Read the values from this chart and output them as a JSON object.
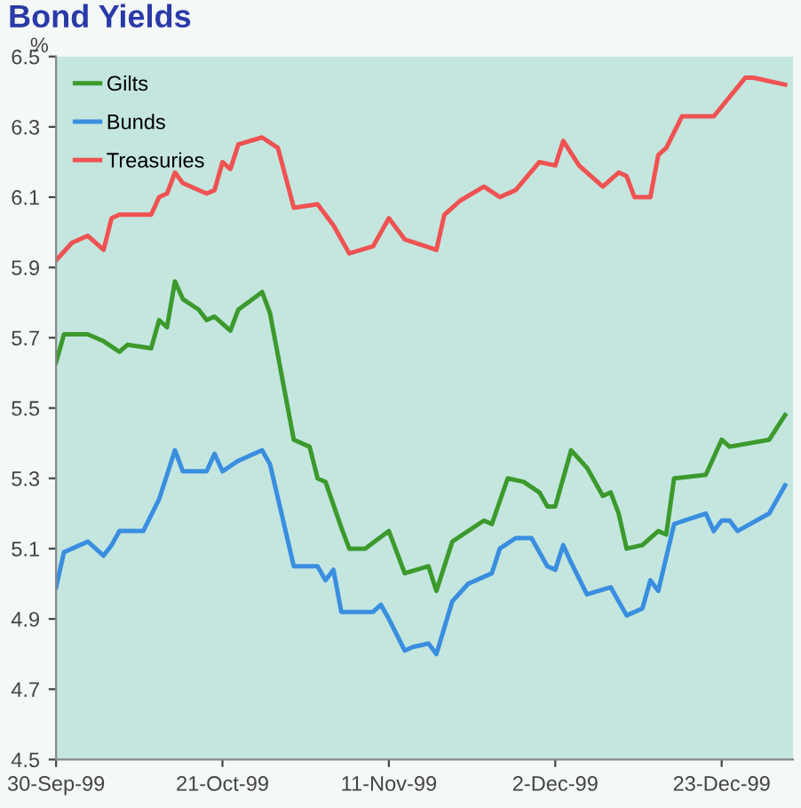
{
  "chart_data": {
    "type": "line",
    "title": "Bond Yields",
    "ylabel": "%",
    "xlim": [
      "1999-09-30",
      "2000-01-01"
    ],
    "ylim": [
      4.5,
      6.5
    ],
    "yticks": [
      4.5,
      4.7,
      4.9,
      5.1,
      5.3,
      5.5,
      5.7,
      5.9,
      6.1,
      6.3,
      6.5
    ],
    "xticks": [
      {
        "value": "1999-09-30",
        "label": "30-Sep-99"
      },
      {
        "value": "1999-10-21",
        "label": "21-Oct-99"
      },
      {
        "value": "1999-11-11",
        "label": "11-Nov-99"
      },
      {
        "value": "1999-12-02",
        "label": "2-Dec-99"
      },
      {
        "value": "1999-12-23",
        "label": "23-Dec-99"
      }
    ],
    "grid": false,
    "legend": "top left",
    "line_style": "solid",
    "marker": "none",
    "series": [
      {
        "name": "Gilts",
        "color": "#3c9a2c",
        "x": [
          "1999-09-30",
          "1999-10-01",
          "1999-10-04",
          "1999-10-06",
          "1999-10-08",
          "1999-10-09",
          "1999-10-12",
          "1999-10-13",
          "1999-10-14",
          "1999-10-15",
          "1999-10-16",
          "1999-10-18",
          "1999-10-19",
          "1999-10-20",
          "1999-10-22",
          "1999-10-23",
          "1999-10-26",
          "1999-10-27",
          "1999-10-30",
          "1999-11-01",
          "1999-11-02",
          "1999-11-03",
          "1999-11-05",
          "1999-11-06",
          "1999-11-08",
          "1999-11-11",
          "1999-11-13",
          "1999-11-16",
          "1999-11-17",
          "1999-11-19",
          "1999-11-23",
          "1999-11-24",
          "1999-11-26",
          "1999-11-28",
          "1999-11-30",
          "1999-12-01",
          "1999-12-02",
          "1999-12-04",
          "1999-12-06",
          "1999-12-08",
          "1999-12-09",
          "1999-12-10",
          "1999-12-11",
          "1999-12-13",
          "1999-12-15",
          "1999-12-16",
          "1999-12-17",
          "1999-12-21",
          "1999-12-23",
          "1999-12-24",
          "1999-12-29",
          "1999-12-31"
        ],
        "values": [
          5.63,
          5.71,
          5.71,
          5.69,
          5.66,
          5.68,
          5.67,
          5.75,
          5.73,
          5.86,
          5.81,
          5.78,
          5.75,
          5.76,
          5.72,
          5.78,
          5.83,
          5.77,
          5.41,
          5.39,
          5.3,
          5.29,
          5.16,
          5.1,
          5.1,
          5.15,
          5.03,
          5.05,
          4.98,
          5.12,
          5.18,
          5.17,
          5.3,
          5.29,
          5.26,
          5.22,
          5.22,
          5.38,
          5.33,
          5.25,
          5.26,
          5.2,
          5.1,
          5.11,
          5.15,
          5.14,
          5.3,
          5.31,
          5.41,
          5.39,
          5.41,
          5.48
        ]
      },
      {
        "name": "Bunds",
        "color": "#3a8ee0",
        "x": [
          "1999-09-30",
          "1999-10-01",
          "1999-10-04",
          "1999-10-06",
          "1999-10-07",
          "1999-10-08",
          "1999-10-11",
          "1999-10-13",
          "1999-10-15",
          "1999-10-16",
          "1999-10-19",
          "1999-10-20",
          "1999-10-21",
          "1999-10-23",
          "1999-10-26",
          "1999-10-27",
          "1999-10-30",
          "1999-11-02",
          "1999-11-03",
          "1999-11-04",
          "1999-11-05",
          "1999-11-09",
          "1999-11-10",
          "1999-11-11",
          "1999-11-13",
          "1999-11-14",
          "1999-11-16",
          "1999-11-17",
          "1999-11-19",
          "1999-11-21",
          "1999-11-24",
          "1999-11-25",
          "1999-11-27",
          "1999-11-29",
          "1999-12-01",
          "1999-12-02",
          "1999-12-03",
          "1999-12-04",
          "1999-12-06",
          "1999-12-09",
          "1999-12-11",
          "1999-12-13",
          "1999-12-14",
          "1999-12-15",
          "1999-12-17",
          "1999-12-21",
          "1999-12-22",
          "1999-12-23",
          "1999-12-24",
          "1999-12-25",
          "1999-12-29",
          "1999-12-31"
        ],
        "values": [
          4.99,
          5.09,
          5.12,
          5.08,
          5.11,
          5.15,
          5.15,
          5.24,
          5.38,
          5.32,
          5.32,
          5.37,
          5.32,
          5.35,
          5.38,
          5.34,
          5.05,
          5.05,
          5.01,
          5.04,
          4.92,
          4.92,
          4.94,
          4.9,
          4.81,
          4.82,
          4.83,
          4.8,
          4.95,
          5.0,
          5.03,
          5.1,
          5.13,
          5.13,
          5.05,
          5.04,
          5.11,
          5.06,
          4.97,
          4.99,
          4.91,
          4.93,
          5.01,
          4.98,
          5.17,
          5.2,
          5.15,
          5.18,
          5.18,
          5.15,
          5.2,
          5.28
        ]
      },
      {
        "name": "Treasuries",
        "color": "#f05252",
        "x": [
          "1999-09-30",
          "1999-10-02",
          "1999-10-04",
          "1999-10-06",
          "1999-10-07",
          "1999-10-08",
          "1999-10-12",
          "1999-10-13",
          "1999-10-14",
          "1999-10-15",
          "1999-10-16",
          "1999-10-19",
          "1999-10-20",
          "1999-10-21",
          "1999-10-22",
          "1999-10-23",
          "1999-10-26",
          "1999-10-28",
          "1999-10-30",
          "1999-11-02",
          "1999-11-04",
          "1999-11-06",
          "1999-11-09",
          "1999-11-10",
          "1999-11-11",
          "1999-11-13",
          "1999-11-17",
          "1999-11-18",
          "1999-11-20",
          "1999-11-23",
          "1999-11-25",
          "1999-11-27",
          "1999-11-30",
          "1999-12-02",
          "1999-12-03",
          "1999-12-05",
          "1999-12-06",
          "1999-12-08",
          "1999-12-10",
          "1999-12-11",
          "1999-12-12",
          "1999-12-14",
          "1999-12-15",
          "1999-12-16",
          "1999-12-18",
          "1999-12-22",
          "1999-12-26",
          "1999-12-27",
          "1999-12-31"
        ],
        "values": [
          5.92,
          5.97,
          5.99,
          5.95,
          6.04,
          6.05,
          6.05,
          6.1,
          6.11,
          6.17,
          6.14,
          6.11,
          6.12,
          6.2,
          6.18,
          6.25,
          6.27,
          6.24,
          6.07,
          6.08,
          6.02,
          5.94,
          5.96,
          6.0,
          6.04,
          5.98,
          5.95,
          6.05,
          6.09,
          6.13,
          6.1,
          6.12,
          6.2,
          6.19,
          6.26,
          6.19,
          6.17,
          6.13,
          6.17,
          6.16,
          6.1,
          6.1,
          6.22,
          6.24,
          6.33,
          6.33,
          6.44,
          6.44,
          6.42
        ]
      }
    ]
  }
}
